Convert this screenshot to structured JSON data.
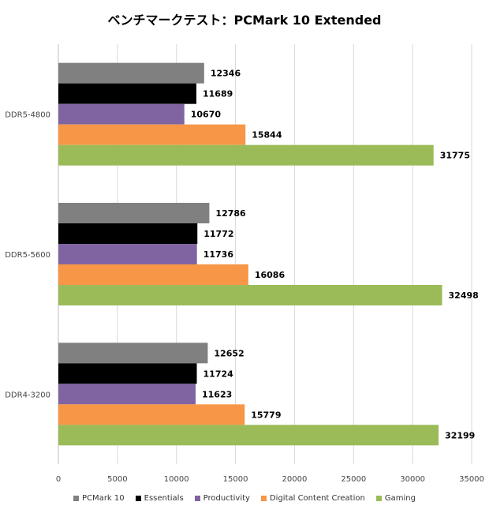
{
  "chart_data": {
    "type": "bar",
    "orientation": "horizontal",
    "title": "ベンチマークテスト：PCMark 10 Extended",
    "xlabel": "",
    "ylabel": "",
    "xlim": [
      0,
      35000
    ],
    "x_ticks": [
      0,
      5000,
      10000,
      15000,
      20000,
      25000,
      30000,
      35000
    ],
    "grid": true,
    "legend_position": "bottom",
    "categories": [
      "DDR5-4800",
      "DDR5-5600",
      "DDR4-3200"
    ],
    "series": [
      {
        "name": "PCMark 10",
        "color": "#808080",
        "values": [
          12346,
          12786,
          12652
        ]
      },
      {
        "name": "Essentials",
        "color": "#000000",
        "values": [
          11689,
          11772,
          11724
        ]
      },
      {
        "name": "Productivity",
        "color": "#8064A2",
        "values": [
          10670,
          11736,
          11623
        ]
      },
      {
        "name": "Digital Content Creation",
        "color": "#F79646",
        "values": [
          15844,
          16086,
          15779
        ]
      },
      {
        "name": "Gaming",
        "color": "#9BBB59",
        "values": [
          31775,
          32498,
          32199
        ]
      }
    ]
  }
}
